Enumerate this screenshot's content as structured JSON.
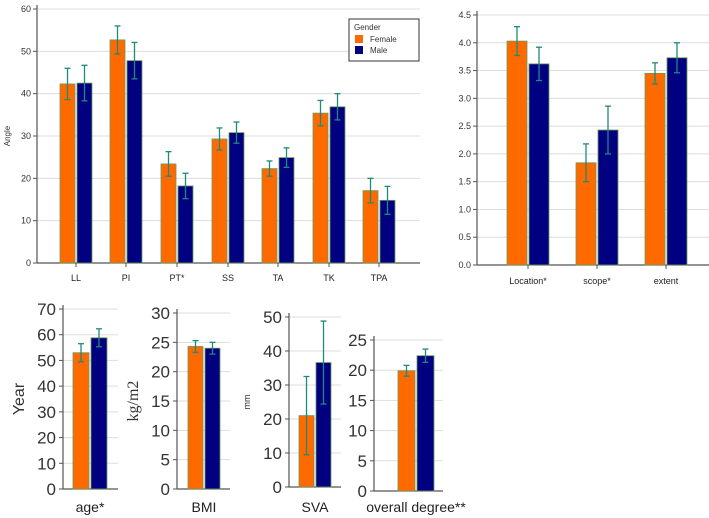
{
  "colors": {
    "female": "#ff6a00",
    "male": "#000080",
    "error": "#1f8a7a",
    "grid": "#dddddd",
    "axis": "#555555"
  },
  "chart_data": [
    {
      "type": "bar",
      "id": "angles",
      "title": "",
      "xlabel": "",
      "ylabel": "Angle",
      "ylim": [
        0,
        60
      ],
      "yticks": [
        "0",
        "10",
        "20",
        "30",
        "40",
        "50",
        "60"
      ],
      "legend": {
        "title": "Gender",
        "entries": [
          "Female",
          "Male"
        ],
        "placement": "top-right"
      },
      "categories": [
        "LL",
        "PI",
        "PT*",
        "SS",
        "TA",
        "TK",
        "TPA"
      ],
      "series": [
        {
          "name": "Female",
          "values": [
            42.3,
            52.7,
            23.4,
            29.3,
            22.3,
            35.4,
            17.1
          ],
          "errors": [
            3.7,
            3.3,
            2.9,
            2.6,
            1.8,
            3.0,
            2.9
          ]
        },
        {
          "name": "Male",
          "values": [
            42.5,
            47.8,
            18.2,
            30.8,
            24.9,
            36.9,
            14.8
          ],
          "errors": [
            4.2,
            4.3,
            3.0,
            2.5,
            2.3,
            3.1,
            3.3
          ]
        }
      ]
    },
    {
      "type": "bar",
      "id": "scores",
      "ylabel": "",
      "ylim": [
        0,
        4.5
      ],
      "yticks": [
        "0.0",
        "0.5",
        "1.0",
        "1.5",
        "2.0",
        "2.5",
        "3.0",
        "3.5",
        "4.0",
        "4.5"
      ],
      "categories": [
        "Location*",
        "scope*",
        "extent"
      ],
      "series": [
        {
          "name": "Female",
          "values": [
            4.03,
            1.84,
            3.45
          ],
          "errors": [
            0.26,
            0.34,
            0.19
          ]
        },
        {
          "name": "Male",
          "values": [
            3.62,
            2.43,
            3.73
          ],
          "errors": [
            0.3,
            0.43,
            0.27
          ]
        }
      ]
    },
    {
      "type": "bar",
      "id": "age",
      "ylabel": "Year",
      "ylim": [
        0,
        70
      ],
      "yticks": [
        "0",
        "10",
        "20",
        "30",
        "40",
        "50",
        "60",
        "70"
      ],
      "categories": [
        "age*"
      ],
      "series": [
        {
          "name": "Female",
          "values": [
            53.0
          ],
          "errors": [
            3.5
          ]
        },
        {
          "name": "Male",
          "values": [
            58.8
          ],
          "errors": [
            3.5
          ]
        }
      ]
    },
    {
      "type": "bar",
      "id": "bmi",
      "ylabel": "kg/m2",
      "ylim": [
        0,
        30
      ],
      "yticks": [
        "0",
        "5",
        "10",
        "15",
        "20",
        "25",
        "30"
      ],
      "categories": [
        "BMI"
      ],
      "series": [
        {
          "name": "Female",
          "values": [
            24.3
          ],
          "errors": [
            1.0
          ]
        },
        {
          "name": "Male",
          "values": [
            24.0
          ],
          "errors": [
            1.0
          ]
        }
      ]
    },
    {
      "type": "bar",
      "id": "sva",
      "ylabel": "mm",
      "ylim": [
        0,
        50
      ],
      "yticks": [
        "0",
        "10",
        "20",
        "30",
        "40",
        "50"
      ],
      "categories": [
        "SVA"
      ],
      "series": [
        {
          "name": "Female",
          "values": [
            21.0
          ],
          "errors": [
            11.5
          ]
        },
        {
          "name": "Male",
          "values": [
            36.6
          ],
          "errors": [
            12.2
          ]
        }
      ]
    },
    {
      "type": "bar",
      "id": "overall",
      "ylabel": "",
      "ylim": [
        0,
        25
      ],
      "yticks": [
        "0",
        "5",
        "10",
        "15",
        "20",
        "25"
      ],
      "categories": [
        "overall degree**"
      ],
      "series": [
        {
          "name": "Female",
          "values": [
            19.9
          ],
          "errors": [
            0.9
          ]
        },
        {
          "name": "Male",
          "values": [
            22.4
          ],
          "errors": [
            1.1
          ]
        }
      ]
    }
  ]
}
